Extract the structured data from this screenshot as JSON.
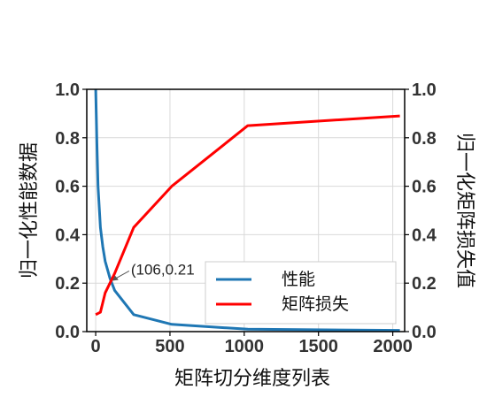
{
  "chart_data": {
    "type": "line",
    "title": "",
    "xlabel": "矩阵切分维度列表",
    "ylabel_left": "归一化性能数据",
    "ylabel_right": "归一化矩阵损失值",
    "xlim": [
      -60,
      2080
    ],
    "ylim": [
      0,
      1
    ],
    "x_ticks": [
      0,
      500,
      1000,
      1500,
      2000
    ],
    "y_ticks": [
      0.0,
      0.2,
      0.4,
      0.6,
      0.8,
      1.0
    ],
    "x_tick_labels": [
      "0",
      "500",
      "1000",
      "1500",
      "2000"
    ],
    "y_tick_labels": [
      "0.0",
      "0.2",
      "0.4",
      "0.6",
      "0.8",
      "1.0"
    ],
    "grid": true,
    "legend_position": "lower-right",
    "series": [
      {
        "name": "性能",
        "color": "#1f77b4",
        "x": [
          0,
          8,
          16,
          32,
          48,
          64,
          96,
          128,
          256,
          512,
          1024,
          2048
        ],
        "y": [
          1.0,
          0.78,
          0.6,
          0.43,
          0.35,
          0.29,
          0.22,
          0.17,
          0.07,
          0.03,
          0.01,
          0.005
        ]
      },
      {
        "name": "矩阵损失",
        "color": "#ff0000",
        "x": [
          0,
          32,
          64,
          128,
          256,
          512,
          1024,
          2048
        ],
        "y": [
          0.07,
          0.08,
          0.16,
          0.24,
          0.43,
          0.6,
          0.85,
          0.89
        ]
      }
    ],
    "annotation": {
      "text": "(106,0.21",
      "x": 106,
      "y": 0.21
    }
  }
}
